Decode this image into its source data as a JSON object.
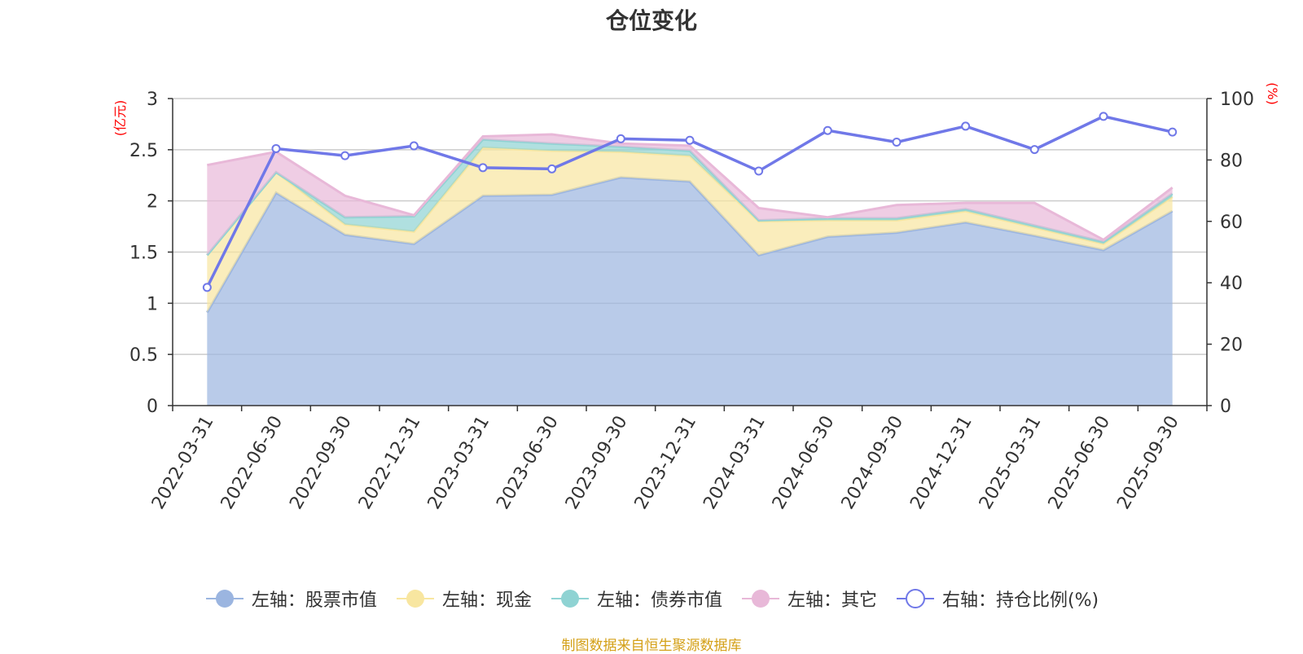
{
  "chart_data": {
    "type": "area",
    "title": "仓位变化",
    "x": [
      "2022-03-31",
      "2022-06-30",
      "2022-09-30",
      "2022-12-31",
      "2023-03-31",
      "2023-06-30",
      "2023-09-30",
      "2023-12-31",
      "2024-03-31",
      "2024-06-30",
      "2024-09-30",
      "2024-12-31",
      "2025-03-31",
      "2025-06-30",
      "2025-09-30"
    ],
    "left_axis": {
      "unit": "(亿元)",
      "ylim": [
        0,
        3
      ],
      "ticks": [
        "0",
        "0.5",
        "1",
        "1.5",
        "2",
        "2.5",
        "3"
      ],
      "stacked": true
    },
    "right_axis": {
      "unit": "(%)",
      "ylim": [
        0,
        100
      ],
      "ticks": [
        "0",
        "20",
        "40",
        "60",
        "80",
        "100"
      ]
    },
    "series": [
      {
        "name": "左轴：股票市值",
        "axis": "left",
        "type": "area",
        "color": "#9bb5e0",
        "values": [
          0.91,
          2.08,
          1.67,
          1.58,
          2.05,
          2.06,
          2.23,
          2.19,
          1.47,
          1.65,
          1.69,
          1.79,
          1.66,
          1.52,
          1.9
        ]
      },
      {
        "name": "左轴：现金",
        "axis": "left",
        "type": "area",
        "color": "#f8e6a0",
        "values": [
          0.56,
          0.2,
          0.1,
          0.12,
          0.47,
          0.43,
          0.25,
          0.25,
          0.33,
          0.16,
          0.12,
          0.11,
          0.08,
          0.06,
          0.14
        ]
      },
      {
        "name": "左轴：债券市值",
        "axis": "left",
        "type": "area",
        "color": "#8fd3d3",
        "values": [
          0,
          0,
          0.07,
          0.15,
          0.08,
          0.07,
          0.05,
          0.05,
          0.01,
          0.02,
          0.02,
          0.02,
          0.02,
          0.02,
          0.03
        ]
      },
      {
        "name": "左轴：其它",
        "axis": "left",
        "type": "area",
        "color": "#e8b8d8",
        "values": [
          0.88,
          0.2,
          0.21,
          0.01,
          0.03,
          0.09,
          0.03,
          0.05,
          0.12,
          0.01,
          0.13,
          0.06,
          0.22,
          0.02,
          0.06
        ]
      },
      {
        "name": "右轴：持仓比例(%)",
        "axis": "right",
        "type": "line",
        "color": "#7078e8",
        "values": [
          38.5,
          83.7,
          81.4,
          84.6,
          77.5,
          77.1,
          86.9,
          86.4,
          76.4,
          89.6,
          85.8,
          91.0,
          83.4,
          94.2,
          89.1
        ]
      }
    ],
    "legend_position": "bottom",
    "grid": true
  },
  "source_note": "制图数据来自恒生聚源数据库"
}
